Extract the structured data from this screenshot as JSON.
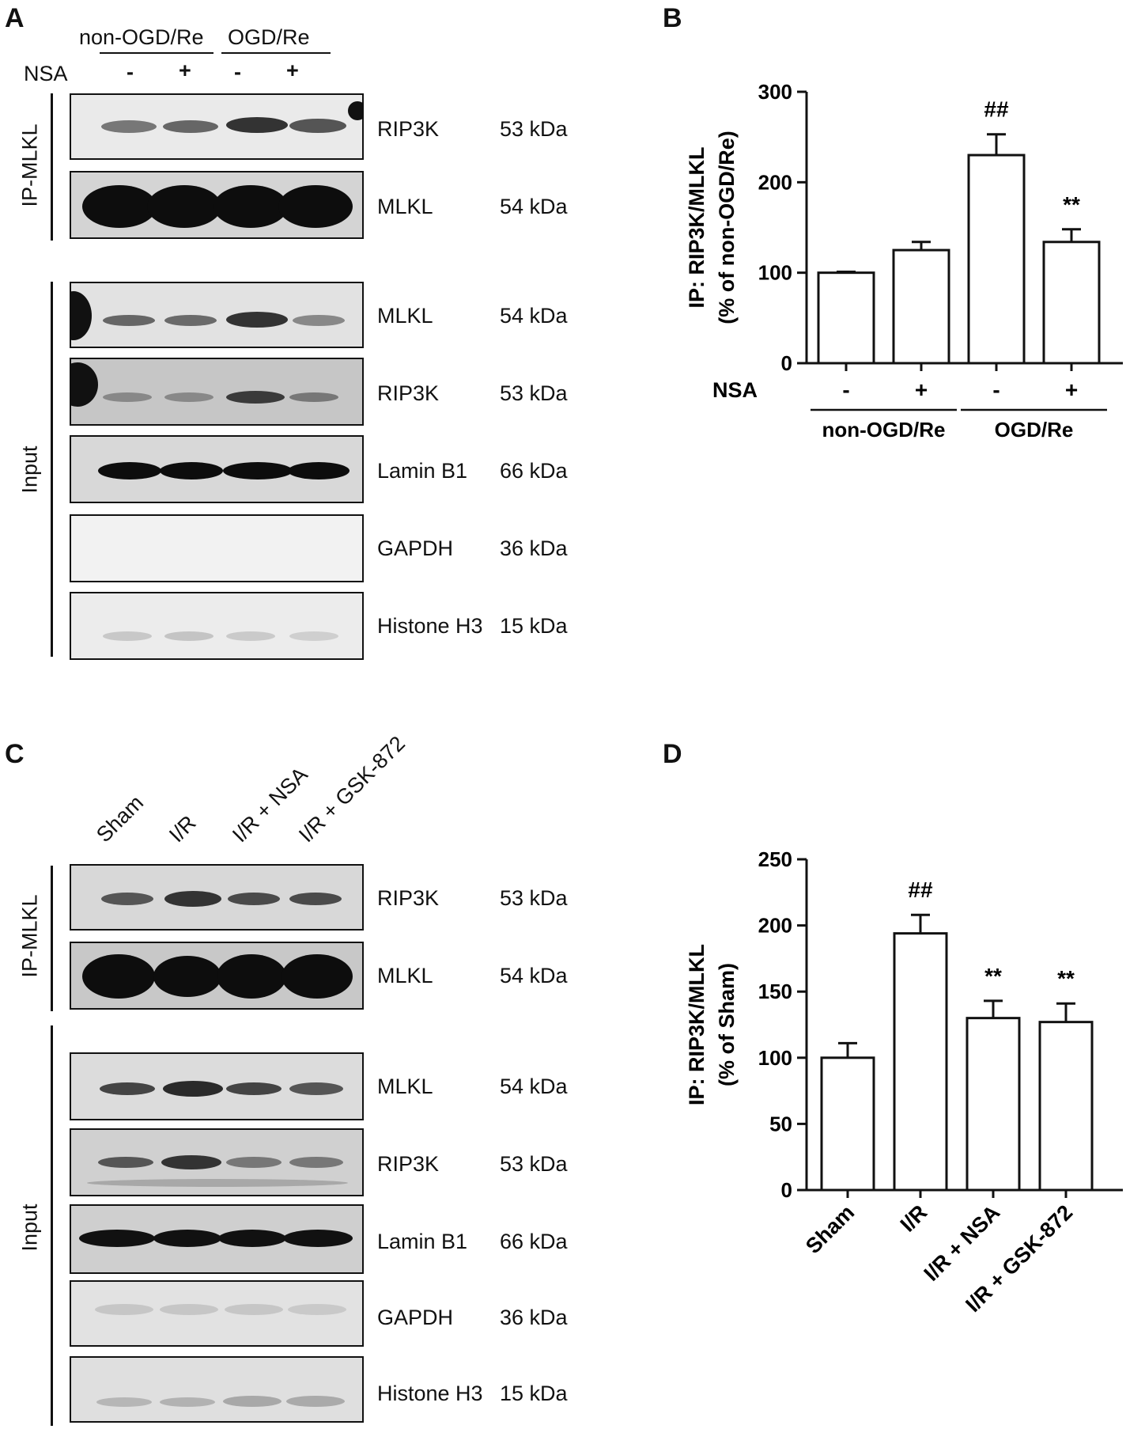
{
  "panels": {
    "a": {
      "letter": "A",
      "groups": [
        "non-OGD/Re",
        "OGD/Re"
      ],
      "nsa_label": "NSA",
      "nsa_signs": [
        "-",
        "+",
        "-",
        "+"
      ],
      "ip_label": "IP-MLKL",
      "input_label": "Input",
      "rows": [
        {
          "name": "RIP3K",
          "kda": "53 kDa"
        },
        {
          "name": "MLKL",
          "kda": "54 kDa"
        },
        {
          "name": "MLKL",
          "kda": "54 kDa"
        },
        {
          "name": "RIP3K",
          "kda": "53 kDa"
        },
        {
          "name": "Lamin B1",
          "kda": "66 kDa"
        },
        {
          "name": "GAPDH",
          "kda": "36 kDa"
        },
        {
          "name": "Histone H3",
          "kda": "15 kDa"
        }
      ]
    },
    "b": {
      "letter": "B"
    },
    "c": {
      "letter": "C",
      "lanes": [
        "Sham",
        "I/R",
        "I/R + NSA",
        "I/R + GSK-872"
      ],
      "ip_label": "IP-MLKL",
      "input_label": "Input",
      "rows": [
        {
          "name": "RIP3K",
          "kda": "53 kDa"
        },
        {
          "name": "MLKL",
          "kda": "54 kDa"
        },
        {
          "name": "MLKL",
          "kda": "54 kDa"
        },
        {
          "name": "RIP3K",
          "kda": "53 kDa"
        },
        {
          "name": "Lamin B1",
          "kda": "66 kDa"
        },
        {
          "name": "GAPDH",
          "kda": "36 kDa"
        },
        {
          "name": "Histone H3",
          "kda": "15 kDa"
        }
      ]
    },
    "d": {
      "letter": "D"
    }
  },
  "chart_data": [
    {
      "type": "bar",
      "panel": "B",
      "categories": [
        "-",
        "+",
        "-",
        "+"
      ],
      "row_label": "NSA",
      "groups": [
        {
          "label": "non-OGD/Re",
          "categories": [
            0,
            1
          ]
        },
        {
          "label": "OGD/Re",
          "categories": [
            2,
            3
          ]
        }
      ],
      "values": [
        100,
        125,
        230,
        134
      ],
      "errors": [
        1,
        9,
        23,
        14
      ],
      "annotations": [
        "",
        "",
        "##",
        "**"
      ],
      "ylabel": "IP: RIP3K/MLKL",
      "ylabel2": "(% of non-OGD/Re)",
      "ylim": [
        0,
        300
      ],
      "yticks": [
        0,
        100,
        200,
        300
      ],
      "grid": false
    },
    {
      "type": "bar",
      "panel": "D",
      "categories": [
        "Sham",
        "I/R",
        "I/R + NSA",
        "I/R + GSK-872"
      ],
      "values": [
        100,
        194,
        130,
        127
      ],
      "errors": [
        11,
        14,
        13,
        14
      ],
      "annotations": [
        "",
        "##",
        "**",
        "**"
      ],
      "ylabel": "IP: RIP3K/MLKL",
      "ylabel2": "(% of Sham)",
      "ylim": [
        0,
        250
      ],
      "yticks": [
        0,
        50,
        100,
        150,
        200,
        250
      ],
      "grid": false
    }
  ]
}
